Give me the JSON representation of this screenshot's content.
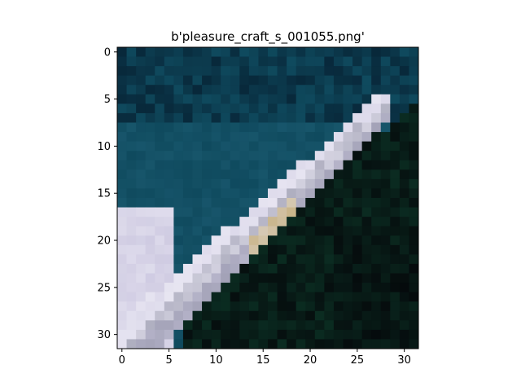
{
  "figure": {
    "title": "b'pleasure_craft_s_001055.png'",
    "image_description_tag": "boat-photo",
    "x_ticks": [
      "0",
      "5",
      "10",
      "15",
      "20",
      "25",
      "30"
    ],
    "y_ticks": [
      "0",
      "5",
      "10",
      "15",
      "20",
      "25",
      "30"
    ],
    "image_resolution": [
      32,
      32
    ],
    "colors": {
      "background": "#ffffff",
      "axis": "#000000",
      "water_dark": "#08283a",
      "water_teal": "#0f4a5e",
      "water_mid": "#1b5a70",
      "deep_green": "#0d3a2a",
      "shadow_black": "#050a0c",
      "hull_white": "#e8e6f2",
      "hull_lavender": "#cfcbe2",
      "deck_grey": "#8f90a4",
      "accent_tan": "#c9b58a",
      "accent_rose": "#b88f8f"
    }
  }
}
